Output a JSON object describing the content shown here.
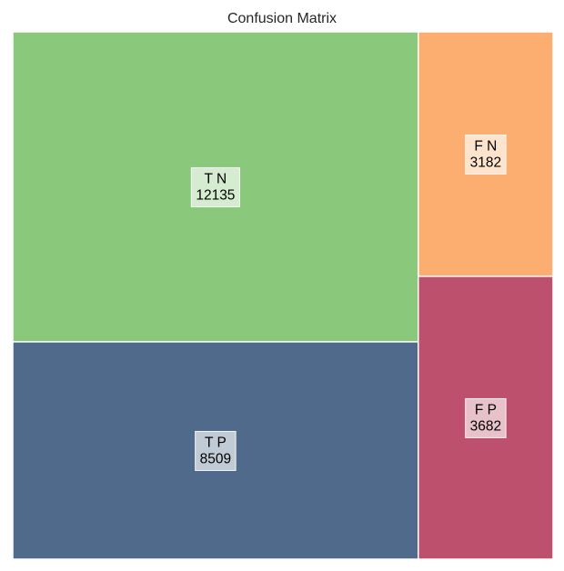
{
  "chart_data": {
    "type": "treemap",
    "title": "Confusion Matrix",
    "cells": [
      {
        "label": "T N",
        "value": 12135,
        "color": "#8ac87c"
      },
      {
        "label": "T P",
        "value": 8509,
        "color": "#4f6a8b"
      },
      {
        "label": "F N",
        "value": 3182,
        "color": "#fbae70"
      },
      {
        "label": "F P",
        "value": 3682,
        "color": "#bd506c"
      }
    ]
  }
}
